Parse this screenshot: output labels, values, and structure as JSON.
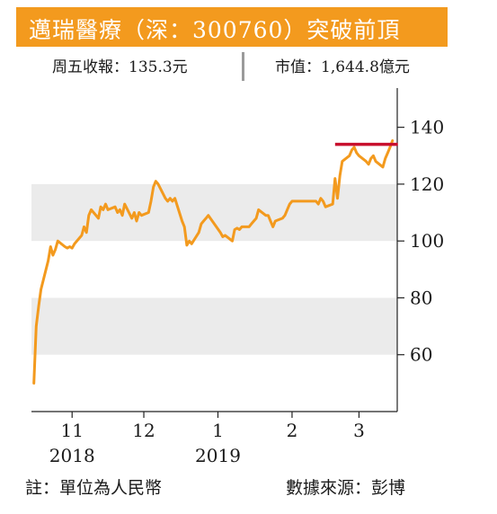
{
  "header": {
    "title": "邁瑞醫療（深：300760）突破前頂",
    "close_label": "周五收報：135.3元",
    "market_cap_label": "市值：1,644.8億元"
  },
  "footer": {
    "note": "註：單位為人民幣",
    "source": "數據來源：彭博"
  },
  "colors": {
    "title_bg": "#f39a1e",
    "line": "#f39a1e",
    "resistance": "#c8102e",
    "band": "#ebebeb"
  },
  "chart_data": {
    "type": "line",
    "title": "",
    "xlabel": "",
    "ylabel": "",
    "ylim": [
      40,
      150
    ],
    "yticks": [
      60,
      80,
      100,
      120,
      140
    ],
    "y_axis_side": "right",
    "grid": false,
    "shaded_bands": [
      [
        60,
        80
      ],
      [
        100,
        120
      ]
    ],
    "xticks": [
      {
        "x": "2018-11-01",
        "label": "11",
        "year": "2018"
      },
      {
        "x": "2018-12-01",
        "label": "12",
        "year": ""
      },
      {
        "x": "2019-01-01",
        "label": "1",
        "year": "2019"
      },
      {
        "x": "2019-02-01",
        "label": "2",
        "year": ""
      },
      {
        "x": "2019-03-01",
        "label": "3",
        "year": ""
      }
    ],
    "xlim": [
      "2018-10-15",
      "2019-03-17"
    ],
    "series": [
      {
        "name": "",
        "x": [
          "2018-10-16",
          "2018-10-17",
          "2018-10-18",
          "2018-10-19",
          "2018-10-22",
          "2018-10-23",
          "2018-10-24",
          "2018-10-25",
          "2018-10-26",
          "2018-10-29",
          "2018-10-30",
          "2018-10-31",
          "2018-11-01",
          "2018-11-02",
          "2018-11-05",
          "2018-11-06",
          "2018-11-07",
          "2018-11-08",
          "2018-11-09",
          "2018-11-12",
          "2018-11-13",
          "2018-11-14",
          "2018-11-15",
          "2018-11-16",
          "2018-11-19",
          "2018-11-20",
          "2018-11-21",
          "2018-11-22",
          "2018-11-23",
          "2018-11-26",
          "2018-11-27",
          "2018-11-28",
          "2018-11-29",
          "2018-11-30",
          "2018-12-03",
          "2018-12-04",
          "2018-12-05",
          "2018-12-06",
          "2018-12-07",
          "2018-12-10",
          "2018-12-11",
          "2018-12-12",
          "2018-12-13",
          "2018-12-14",
          "2018-12-17",
          "2018-12-18",
          "2018-12-19",
          "2018-12-20",
          "2018-12-21",
          "2018-12-24",
          "2018-12-25",
          "2018-12-26",
          "2018-12-27",
          "2018-12-28",
          "2019-01-02",
          "2019-01-03",
          "2019-01-04",
          "2019-01-07",
          "2019-01-08",
          "2019-01-09",
          "2019-01-10",
          "2019-01-11",
          "2019-01-14",
          "2019-01-15",
          "2019-01-16",
          "2019-01-17",
          "2019-01-18",
          "2019-01-21",
          "2019-01-22",
          "2019-01-23",
          "2019-01-24",
          "2019-01-25",
          "2019-01-28",
          "2019-01-29",
          "2019-01-30",
          "2019-01-31",
          "2019-02-01",
          "2019-02-11",
          "2019-02-12",
          "2019-02-13",
          "2019-02-14",
          "2019-02-15",
          "2019-02-18",
          "2019-02-19",
          "2019-02-20",
          "2019-02-21",
          "2019-02-22",
          "2019-02-25",
          "2019-02-26",
          "2019-02-27",
          "2019-02-28",
          "2019-03-01",
          "2019-03-04",
          "2019-03-05",
          "2019-03-06",
          "2019-03-07",
          "2019-03-08",
          "2019-03-11",
          "2019-03-12",
          "2019-03-13",
          "2019-03-14",
          "2019-03-15"
        ],
        "y": [
          50,
          70,
          77,
          83,
          93,
          98,
          95,
          97,
          100,
          98,
          97.5,
          98,
          97.5,
          99,
          102,
          105,
          103,
          109,
          111,
          108,
          112,
          111,
          113,
          111,
          112,
          110,
          111,
          109,
          113,
          108,
          110,
          107,
          110,
          109,
          110,
          114,
          119,
          121,
          120,
          115,
          114,
          115,
          114,
          115,
          107,
          105,
          98.5,
          100,
          99,
          103,
          106,
          107,
          108,
          109,
          103,
          101.5,
          102,
          100,
          104,
          104.5,
          104,
          105,
          105,
          106,
          107,
          108,
          111,
          109,
          109,
          107,
          105,
          107,
          108,
          109,
          111,
          113,
          114,
          114,
          113,
          115,
          114,
          112,
          113,
          122,
          115,
          123,
          128,
          130,
          132,
          133,
          131,
          130,
          128,
          127,
          129,
          130,
          128,
          126,
          129,
          131,
          133,
          135.3
        ]
      }
    ],
    "annotations": [
      {
        "type": "hline",
        "y": 134,
        "x_start": "2019-02-19",
        "x_end": "2019-03-15"
      }
    ]
  }
}
